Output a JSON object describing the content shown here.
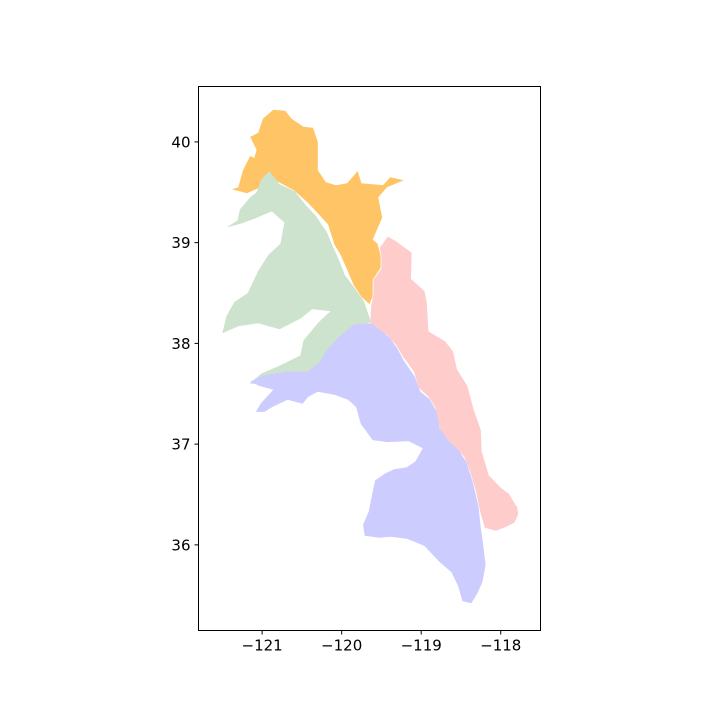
{
  "map": {
    "x_axis": {
      "ticks": [
        -121,
        -120,
        -119,
        -118
      ],
      "tick_labels": [
        "−121",
        "−120",
        "−119",
        "−118"
      ],
      "range": [
        -121.8,
        -117.5
      ]
    },
    "y_axis": {
      "ticks": [
        36,
        37,
        38,
        39,
        40
      ],
      "tick_labels": [
        "36",
        "37",
        "38",
        "39",
        "40"
      ],
      "range": [
        35.15,
        40.55
      ]
    },
    "regions": [
      {
        "id": "north",
        "color": "#ffc466",
        "outline": [
          [
            -121.38,
            39.53
          ],
          [
            -121.3,
            39.55
          ],
          [
            -121.24,
            39.72
          ],
          [
            -121.15,
            39.86
          ],
          [
            -121.1,
            39.84
          ],
          [
            -121.07,
            39.92
          ],
          [
            -121.15,
            40.05
          ],
          [
            -121.05,
            40.09
          ],
          [
            -120.99,
            40.23
          ],
          [
            -120.86,
            40.32
          ],
          [
            -120.71,
            40.31
          ],
          [
            -120.63,
            40.23
          ],
          [
            -120.48,
            40.15
          ],
          [
            -120.36,
            40.14
          ],
          [
            -120.3,
            40.0
          ],
          [
            -120.3,
            39.85
          ],
          [
            -120.3,
            39.72
          ],
          [
            -120.2,
            39.6
          ],
          [
            -120.07,
            39.57
          ],
          [
            -119.93,
            39.59
          ],
          [
            -119.8,
            39.71
          ],
          [
            -119.75,
            39.59
          ],
          [
            -119.48,
            39.57
          ],
          [
            -119.39,
            39.65
          ],
          [
            -119.22,
            39.62
          ],
          [
            -119.43,
            39.55
          ],
          [
            -119.54,
            39.45
          ],
          [
            -119.49,
            39.25
          ],
          [
            -119.61,
            39.03
          ],
          [
            -119.55,
            38.99
          ],
          [
            -119.51,
            38.87
          ],
          [
            -119.51,
            38.75
          ],
          [
            -119.61,
            38.63
          ],
          [
            -119.61,
            38.47
          ],
          [
            -119.65,
            38.39
          ],
          [
            -119.75,
            38.46
          ],
          [
            -119.85,
            38.58
          ],
          [
            -119.93,
            38.73
          ],
          [
            -120.02,
            38.89
          ],
          [
            -120.09,
            38.98
          ],
          [
            -120.17,
            39.18
          ],
          [
            -120.31,
            39.3
          ],
          [
            -120.43,
            39.4
          ],
          [
            -120.6,
            39.52
          ],
          [
            -120.86,
            39.63
          ],
          [
            -121.02,
            39.55
          ],
          [
            -121.19,
            39.49
          ]
        ]
      },
      {
        "id": "west",
        "color": "#cde3cd",
        "outline": [
          [
            -121.45,
            39.15
          ],
          [
            -121.31,
            39.22
          ],
          [
            -121.28,
            39.33
          ],
          [
            -121.15,
            39.45
          ],
          [
            -121.07,
            39.5
          ],
          [
            -121.01,
            39.63
          ],
          [
            -120.91,
            39.71
          ],
          [
            -120.78,
            39.58
          ],
          [
            -120.59,
            39.51
          ],
          [
            -120.46,
            39.38
          ],
          [
            -120.33,
            39.27
          ],
          [
            -120.19,
            39.11
          ],
          [
            -120.12,
            38.98
          ],
          [
            -120.04,
            38.84
          ],
          [
            -119.96,
            38.68
          ],
          [
            -119.82,
            38.53
          ],
          [
            -119.72,
            38.42
          ],
          [
            -119.63,
            38.21
          ],
          [
            -119.8,
            38.17
          ],
          [
            -119.96,
            38.06
          ],
          [
            -120.13,
            37.94
          ],
          [
            -120.21,
            37.79
          ],
          [
            -120.33,
            37.72
          ],
          [
            -120.58,
            37.69
          ],
          [
            -120.81,
            37.63
          ],
          [
            -121.02,
            37.6
          ],
          [
            -121.16,
            37.6
          ],
          [
            -121.01,
            37.7
          ],
          [
            -120.78,
            37.78
          ],
          [
            -120.52,
            37.88
          ],
          [
            -120.48,
            38.03
          ],
          [
            -120.29,
            38.21
          ],
          [
            -120.14,
            38.32
          ],
          [
            -120.37,
            38.34
          ],
          [
            -120.51,
            38.25
          ],
          [
            -120.78,
            38.14
          ],
          [
            -121.05,
            38.2
          ],
          [
            -121.3,
            38.17
          ],
          [
            -121.5,
            38.1
          ],
          [
            -121.45,
            38.27
          ],
          [
            -121.35,
            38.41
          ],
          [
            -121.18,
            38.5
          ],
          [
            -121.05,
            38.72
          ],
          [
            -120.92,
            38.88
          ],
          [
            -120.77,
            38.99
          ],
          [
            -120.72,
            39.2
          ],
          [
            -120.88,
            39.31
          ],
          [
            -121.09,
            39.24
          ],
          [
            -121.26,
            39.19
          ]
        ]
      },
      {
        "id": "east",
        "color": "#ffcccc",
        "outline": [
          [
            -119.52,
            38.95
          ],
          [
            -119.42,
            39.06
          ],
          [
            -119.33,
            39.02
          ],
          [
            -119.12,
            38.9
          ],
          [
            -119.13,
            38.64
          ],
          [
            -118.96,
            38.52
          ],
          [
            -118.93,
            38.4
          ],
          [
            -118.91,
            38.12
          ],
          [
            -118.7,
            38.02
          ],
          [
            -118.6,
            37.92
          ],
          [
            -118.55,
            37.74
          ],
          [
            -118.42,
            37.58
          ],
          [
            -118.34,
            37.34
          ],
          [
            -118.25,
            37.14
          ],
          [
            -118.24,
            36.93
          ],
          [
            -118.15,
            36.69
          ],
          [
            -117.99,
            36.56
          ],
          [
            -117.9,
            36.51
          ],
          [
            -117.84,
            36.43
          ],
          [
            -117.79,
            36.37
          ],
          [
            -117.78,
            36.3
          ],
          [
            -117.83,
            36.22
          ],
          [
            -117.93,
            36.18
          ],
          [
            -118.06,
            36.14
          ],
          [
            -118.2,
            36.17
          ],
          [
            -118.26,
            36.33
          ],
          [
            -118.31,
            36.53
          ],
          [
            -118.39,
            36.74
          ],
          [
            -118.46,
            36.88
          ],
          [
            -118.53,
            36.93
          ],
          [
            -118.62,
            37.01
          ],
          [
            -118.74,
            37.1
          ],
          [
            -118.79,
            37.22
          ],
          [
            -118.82,
            37.36
          ],
          [
            -118.91,
            37.47
          ],
          [
            -119.03,
            37.56
          ],
          [
            -119.09,
            37.72
          ],
          [
            -119.23,
            37.87
          ],
          [
            -119.32,
            37.99
          ],
          [
            -119.43,
            38.08
          ],
          [
            -119.54,
            38.14
          ],
          [
            -119.64,
            38.21
          ],
          [
            -119.63,
            38.36
          ],
          [
            -119.6,
            38.49
          ],
          [
            -119.6,
            38.63
          ],
          [
            -119.5,
            38.74
          ],
          [
            -119.5,
            38.87
          ]
        ]
      },
      {
        "id": "south",
        "color": "#ccccff",
        "outline": [
          [
            -119.62,
            38.2
          ],
          [
            -119.51,
            38.13
          ],
          [
            -119.39,
            38.05
          ],
          [
            -119.3,
            37.95
          ],
          [
            -119.22,
            37.83
          ],
          [
            -119.08,
            37.67
          ],
          [
            -119.01,
            37.52
          ],
          [
            -118.9,
            37.45
          ],
          [
            -118.81,
            37.33
          ],
          [
            -118.77,
            37.16
          ],
          [
            -118.66,
            37.04
          ],
          [
            -118.52,
            36.93
          ],
          [
            -118.43,
            36.82
          ],
          [
            -118.35,
            36.62
          ],
          [
            -118.28,
            36.38
          ],
          [
            -118.25,
            36.17
          ],
          [
            -118.22,
            36.0
          ],
          [
            -118.19,
            35.8
          ],
          [
            -118.23,
            35.63
          ],
          [
            -118.3,
            35.51
          ],
          [
            -118.37,
            35.42
          ],
          [
            -118.48,
            35.44
          ],
          [
            -118.54,
            35.6
          ],
          [
            -118.62,
            35.73
          ],
          [
            -118.77,
            35.83
          ],
          [
            -118.96,
            35.99
          ],
          [
            -119.18,
            36.06
          ],
          [
            -119.39,
            36.08
          ],
          [
            -119.52,
            36.07
          ],
          [
            -119.62,
            36.08
          ],
          [
            -119.71,
            36.09
          ],
          [
            -119.73,
            36.2
          ],
          [
            -119.66,
            36.33
          ],
          [
            -119.61,
            36.53
          ],
          [
            -119.58,
            36.64
          ],
          [
            -119.45,
            36.71
          ],
          [
            -119.34,
            36.75
          ],
          [
            -119.18,
            36.77
          ],
          [
            -119.07,
            36.83
          ],
          [
            -118.98,
            36.96
          ],
          [
            -119.16,
            37.03
          ],
          [
            -119.43,
            37.02
          ],
          [
            -119.61,
            37.04
          ],
          [
            -119.76,
            37.2
          ],
          [
            -119.82,
            37.37
          ],
          [
            -119.92,
            37.44
          ],
          [
            -120.09,
            37.49
          ],
          [
            -120.3,
            37.52
          ],
          [
            -120.42,
            37.47
          ],
          [
            -120.49,
            37.4
          ],
          [
            -120.68,
            37.44
          ],
          [
            -120.87,
            37.37
          ],
          [
            -120.97,
            37.32
          ],
          [
            -121.08,
            37.32
          ],
          [
            -121.01,
            37.41
          ],
          [
            -120.86,
            37.54
          ],
          [
            -121.04,
            37.58
          ],
          [
            -121.15,
            37.62
          ],
          [
            -120.99,
            37.68
          ],
          [
            -120.69,
            37.72
          ],
          [
            -120.43,
            37.72
          ],
          [
            -120.27,
            37.82
          ],
          [
            -120.19,
            37.93
          ],
          [
            -120.04,
            38.06
          ],
          [
            -119.84,
            38.19
          ]
        ]
      }
    ]
  }
}
